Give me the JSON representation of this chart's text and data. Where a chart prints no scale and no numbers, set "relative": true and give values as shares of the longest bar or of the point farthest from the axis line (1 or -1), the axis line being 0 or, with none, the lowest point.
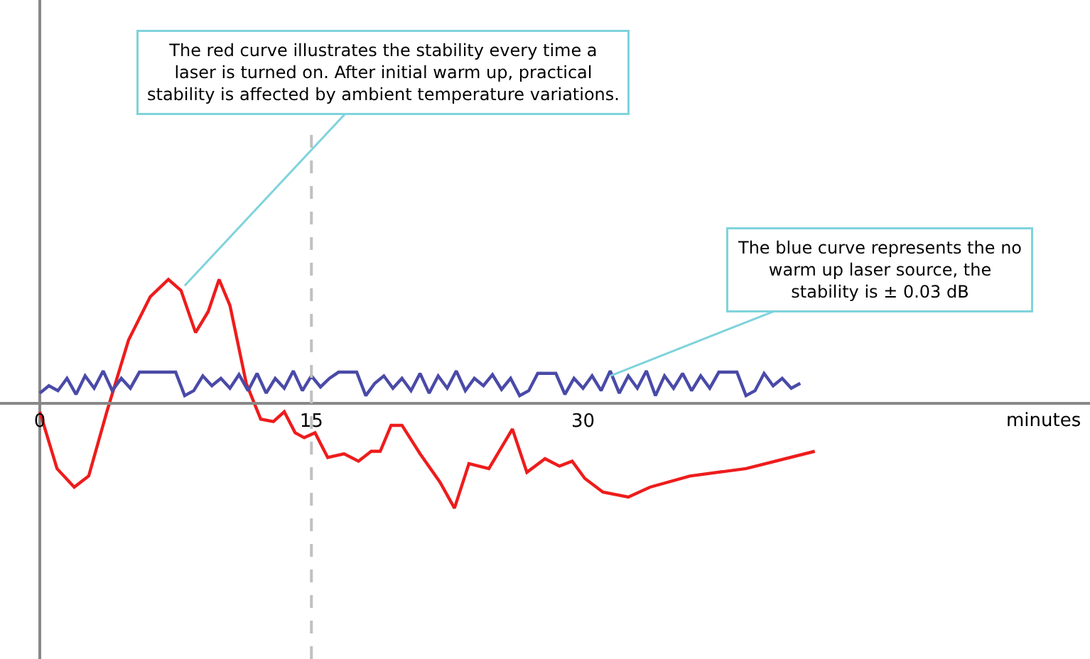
{
  "chart_data": {
    "type": "line",
    "relative": true,
    "xlabel": "minutes",
    "x": [
      0,
      0.5,
      1,
      1.5,
      2,
      2.5,
      3,
      3.5,
      4,
      4.5,
      5,
      5.5,
      6,
      6.5,
      7,
      7.5,
      8,
      8.5,
      9,
      9.5,
      10,
      10.5,
      11,
      11.5,
      12,
      12.5,
      13,
      13.5,
      14,
      14.5,
      15,
      15.5,
      16,
      16.5,
      17,
      17.5,
      18,
      18.5,
      19,
      19.5,
      20,
      20.5,
      21,
      21.5,
      22,
      22.5,
      23,
      23.5,
      24,
      24.5,
      25,
      25.5,
      26,
      26.5,
      27,
      27.5,
      28,
      28.5,
      29,
      29.5,
      30,
      30.5,
      31,
      31.5,
      32,
      32.5,
      33,
      33.5,
      34,
      34.5,
      35,
      35.5,
      36,
      36.5,
      37,
      37.5,
      38,
      38.5,
      39,
      39.5,
      40,
      40.5,
      41,
      41.5,
      42
    ],
    "xlim": [
      -2.2,
      58
    ],
    "xticks": [
      0,
      15,
      30
    ],
    "series": [
      {
        "color": "#ee1c1c",
        "x": [
          0,
          0.95,
          1.9,
          2.7,
          3.7,
          4.9,
          6.1,
          7.1,
          7.8,
          8.6,
          9.3,
          9.9,
          10.5,
          11.4,
          12.2,
          12.9,
          13.5,
          14.1,
          14.6,
          15.2,
          15.9,
          16.8,
          17.6,
          18.3,
          18.8,
          19.4,
          20.0,
          21.0,
          22.1,
          22.9,
          23.7,
          24.8,
          26.1,
          26.9,
          27.9,
          28.7,
          29.4,
          30.1,
          31.1,
          32.5,
          33.7,
          35.9,
          39.0,
          42.8
        ],
        "values": [
          -0.07,
          -0.53,
          -0.68,
          -0.59,
          -0.07,
          0.51,
          0.86,
          1.0,
          0.91,
          0.57,
          0.74,
          1.0,
          0.79,
          0.16,
          -0.13,
          -0.15,
          -0.07,
          -0.24,
          -0.28,
          -0.24,
          -0.44,
          -0.41,
          -0.47,
          -0.39,
          -0.39,
          -0.18,
          -0.18,
          -0.41,
          -0.64,
          -0.85,
          -0.49,
          -0.53,
          -0.21,
          -0.56,
          -0.45,
          -0.51,
          -0.47,
          -0.61,
          -0.72,
          -0.76,
          -0.68,
          -0.59,
          -0.53,
          -0.39
        ]
      },
      {
        "color": "#4a4aa8",
        "values": [
          0.08,
          0.14,
          0.1,
          0.2,
          0.07,
          0.22,
          0.12,
          0.26,
          0.1,
          0.2,
          0.12,
          0.25,
          0.25,
          0.25,
          0.25,
          0.25,
          0.06,
          0.1,
          0.22,
          0.14,
          0.2,
          0.12,
          0.23,
          0.1,
          0.24,
          0.08,
          0.2,
          0.12,
          0.26,
          0.1,
          0.22,
          0.13,
          0.2,
          0.25,
          0.25,
          0.25,
          0.06,
          0.16,
          0.22,
          0.12,
          0.2,
          0.1,
          0.24,
          0.08,
          0.22,
          0.12,
          0.26,
          0.1,
          0.2,
          0.14,
          0.23,
          0.11,
          0.2,
          0.06,
          0.1,
          0.24,
          0.24,
          0.24,
          0.07,
          0.2,
          0.12,
          0.22,
          0.1,
          0.26,
          0.08,
          0.22,
          0.12,
          0.26,
          0.06,
          0.22,
          0.12,
          0.24,
          0.1,
          0.22,
          0.12,
          0.25,
          0.25,
          0.25,
          0.06,
          0.1,
          0.24,
          0.14,
          0.2,
          0.12,
          0.16
        ]
      }
    ],
    "ref_lines": [
      {
        "axis": "x",
        "value": 15,
        "color": "#c0c0c0",
        "line_style": "dashed"
      }
    ],
    "annotations": [
      {
        "text": "The red curve illustrates the stability every time a laser is turned on. After initial warm up, practical stability is affected by ambient temperature variations.",
        "x": 8.0,
        "y": 0.95
      },
      {
        "text": "The blue curve represents the no warm up laser source, the stability is ± 0.03 dB",
        "x": 31.5,
        "y": 0.22
      }
    ],
    "marker": "none",
    "line_style": "solid"
  }
}
